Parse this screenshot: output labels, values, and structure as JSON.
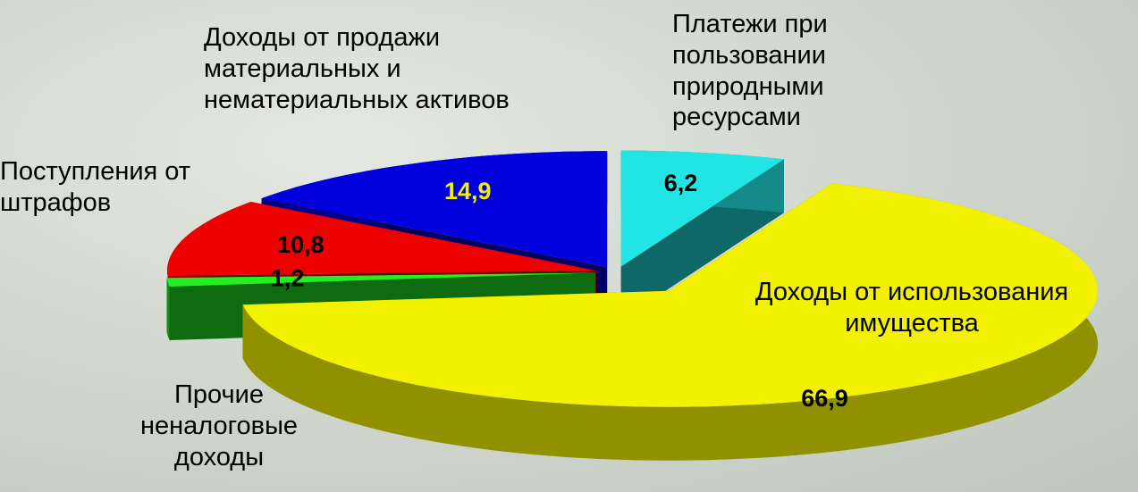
{
  "chart_data": {
    "type": "pie3d",
    "categories": [
      "Платежи при пользовании природными ресурсами",
      "Доходы от использования имущества",
      "Прочие неналоговые доходы",
      "Поступления от штрафов",
      "Доходы от продажи материальных и нематериальных активов"
    ],
    "values": [
      6.2,
      66.9,
      1.2,
      10.8,
      14.9
    ],
    "value_labels": [
      "6,2",
      "66,9",
      "1,2",
      "10,8",
      "14,9"
    ],
    "colors": [
      "#22e4e4",
      "#f2f200",
      "#22ee22",
      "#ee0000",
      "#0000dd"
    ],
    "label_colors": [
      "#000000",
      "#000000",
      "#000000",
      "#000000",
      "#f2f200"
    ]
  }
}
